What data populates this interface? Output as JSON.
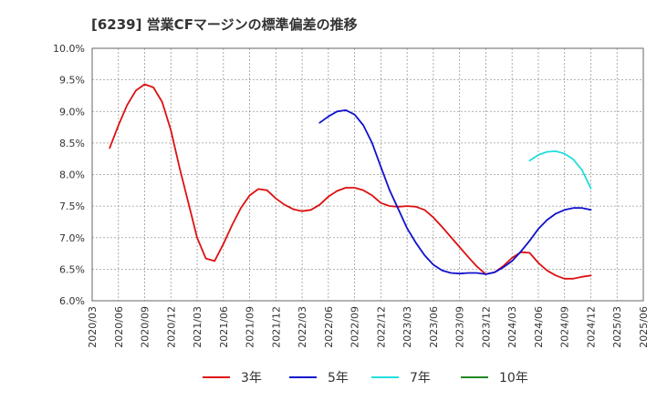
{
  "chart_data": {
    "type": "line",
    "title": "[6239]  営業CFマージンの標準偏差の推移",
    "xlabel": "",
    "ylabel": "",
    "ylim": [
      6.0,
      10.0
    ],
    "grid": true,
    "legend_position": "bottom",
    "y_ticks": [
      "10.0%",
      "9.5%",
      "9.0%",
      "8.5%",
      "8.0%",
      "7.5%",
      "7.0%",
      "6.5%",
      "6.0%"
    ],
    "x_ticks": [
      "2020/03",
      "2020/06",
      "2020/09",
      "2020/12",
      "2021/03",
      "2021/06",
      "2021/09",
      "2021/12",
      "2022/03",
      "2022/06",
      "2022/09",
      "2022/12",
      "2023/03",
      "2023/06",
      "2023/09",
      "2023/12",
      "2024/03",
      "2024/06",
      "2024/09",
      "2024/12",
      "2025/03",
      "2025/06"
    ],
    "series": [
      {
        "name": "3年",
        "color": "#dd1111",
        "points": [
          [
            "2020/05",
            8.42
          ],
          [
            "2020/06",
            8.78
          ],
          [
            "2020/07",
            9.1
          ],
          [
            "2020/08",
            9.33
          ],
          [
            "2020/09",
            9.43
          ],
          [
            "2020/10",
            9.38
          ],
          [
            "2020/11",
            9.15
          ],
          [
            "2020/12",
            8.7
          ],
          [
            "2021/01",
            8.1
          ],
          [
            "2021/02",
            7.55
          ],
          [
            "2021/03",
            7.0
          ],
          [
            "2021/04",
            6.67
          ],
          [
            "2021/05",
            6.63
          ],
          [
            "2021/06",
            6.9
          ],
          [
            "2021/07",
            7.2
          ],
          [
            "2021/08",
            7.47
          ],
          [
            "2021/09",
            7.67
          ],
          [
            "2021/10",
            7.77
          ],
          [
            "2021/11",
            7.75
          ],
          [
            "2021/12",
            7.62
          ],
          [
            "2022/01",
            7.52
          ],
          [
            "2022/02",
            7.45
          ],
          [
            "2022/03",
            7.42
          ],
          [
            "2022/04",
            7.44
          ],
          [
            "2022/05",
            7.52
          ],
          [
            "2022/06",
            7.65
          ],
          [
            "2022/07",
            7.74
          ],
          [
            "2022/08",
            7.79
          ],
          [
            "2022/09",
            7.79
          ],
          [
            "2022/10",
            7.75
          ],
          [
            "2022/11",
            7.67
          ],
          [
            "2022/12",
            7.55
          ],
          [
            "2023/01",
            7.5
          ],
          [
            "2023/02",
            7.49
          ],
          [
            "2023/03",
            7.5
          ],
          [
            "2023/04",
            7.49
          ],
          [
            "2023/05",
            7.44
          ],
          [
            "2023/06",
            7.32
          ],
          [
            "2023/07",
            7.17
          ],
          [
            "2023/08",
            7.01
          ],
          [
            "2023/09",
            6.85
          ],
          [
            "2023/10",
            6.69
          ],
          [
            "2023/11",
            6.54
          ],
          [
            "2023/12",
            6.42
          ],
          [
            "2024/01",
            6.45
          ],
          [
            "2024/02",
            6.55
          ],
          [
            "2024/03",
            6.68
          ],
          [
            "2024/04",
            6.77
          ],
          [
            "2024/05",
            6.76
          ],
          [
            "2024/06",
            6.6
          ],
          [
            "2024/07",
            6.48
          ],
          [
            "2024/08",
            6.4
          ],
          [
            "2024/09",
            6.35
          ],
          [
            "2024/10",
            6.35
          ],
          [
            "2024/11",
            6.38
          ],
          [
            "2024/12",
            6.4
          ]
        ]
      },
      {
        "name": "5年",
        "color": "#1111cc",
        "points": [
          [
            "2022/05",
            8.82
          ],
          [
            "2022/06",
            8.92
          ],
          [
            "2022/07",
            9.0
          ],
          [
            "2022/08",
            9.02
          ],
          [
            "2022/09",
            8.95
          ],
          [
            "2022/10",
            8.78
          ],
          [
            "2022/11",
            8.5
          ],
          [
            "2022/12",
            8.12
          ],
          [
            "2023/01",
            7.75
          ],
          [
            "2023/02",
            7.45
          ],
          [
            "2023/03",
            7.15
          ],
          [
            "2023/04",
            6.92
          ],
          [
            "2023/05",
            6.72
          ],
          [
            "2023/06",
            6.57
          ],
          [
            "2023/07",
            6.48
          ],
          [
            "2023/08",
            6.44
          ],
          [
            "2023/09",
            6.43
          ],
          [
            "2023/10",
            6.44
          ],
          [
            "2023/11",
            6.44
          ],
          [
            "2023/12",
            6.42
          ],
          [
            "2024/01",
            6.45
          ],
          [
            "2024/02",
            6.53
          ],
          [
            "2024/03",
            6.63
          ],
          [
            "2024/04",
            6.78
          ],
          [
            "2024/05",
            6.95
          ],
          [
            "2024/06",
            7.14
          ],
          [
            "2024/07",
            7.28
          ],
          [
            "2024/08",
            7.38
          ],
          [
            "2024/09",
            7.44
          ],
          [
            "2024/10",
            7.47
          ],
          [
            "2024/11",
            7.47
          ],
          [
            "2024/12",
            7.44
          ]
        ]
      },
      {
        "name": "7年",
        "color": "#22dddd",
        "points": [
          [
            "2024/05",
            8.22
          ],
          [
            "2024/06",
            8.31
          ],
          [
            "2024/07",
            8.36
          ],
          [
            "2024/08",
            8.37
          ],
          [
            "2024/09",
            8.33
          ],
          [
            "2024/10",
            8.24
          ],
          [
            "2024/11",
            8.07
          ],
          [
            "2024/12",
            7.78
          ]
        ]
      },
      {
        "name": "10年",
        "color": "#228822",
        "points": []
      }
    ]
  }
}
